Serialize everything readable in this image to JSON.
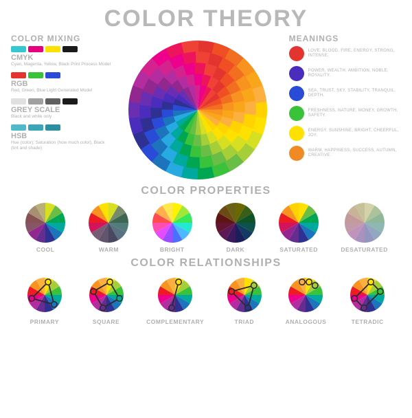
{
  "title": "COLOR THEORY",
  "mixing": {
    "heading": "COLOR MIXING",
    "models": [
      {
        "name": "CMYK",
        "desc": "Cyan, Magenta, Yellow, Black\nPrint Process Model",
        "swatches": [
          "#36c7d1",
          "#e6007e",
          "#ffe100",
          "#1a1a1a"
        ]
      },
      {
        "name": "RGB",
        "desc": "Red, Green, Blue\nLight Generated Model",
        "swatches": [
          "#e3342f",
          "#3ac23a",
          "#2a4bd8"
        ]
      },
      {
        "name": "GREY SCALE",
        "desc": "Black and white only",
        "swatches": [
          "#e0e0e0",
          "#a0a0a0",
          "#606060",
          "#1a1a1a"
        ]
      },
      {
        "name": "HSB",
        "desc": "Hue (color), Saturation (how much\ncolor), Black (tint and shade)",
        "swatches": [
          "#4fb8c9",
          "#39a5b7",
          "#2a8fa1"
        ]
      }
    ]
  },
  "meanings": {
    "heading": "MEANINGS",
    "items": [
      {
        "color": "#e3342f",
        "text": "LOVE, BLOOD, FIRE, ENERGY,\nSTRONG, INTENSE."
      },
      {
        "color": "#4a2dbd",
        "text": "POWER, WEALTH, AMBITION,\nNOBLE, ROYALITY."
      },
      {
        "color": "#2a4bd8",
        "text": "SEA, TRUST, SKY, STABILITY,\nTRANQUIL, DEPTH."
      },
      {
        "color": "#3ac23a",
        "text": "FRESHNESS, NATURE, MONEY,\nGROWTH, SAFETY."
      },
      {
        "color": "#ffe100",
        "text": "ENERGY, SUNSHINE, BRIGHT,\nCHEERFUL, JOY."
      },
      {
        "color": "#f08a24",
        "text": "WARM, HAPPINESS, SUCCESS,\nAUTUMN, CREATIVE."
      }
    ]
  },
  "main_wheel": {
    "size": 210,
    "colors": [
      "#e3342f",
      "#f04e23",
      "#f26f21",
      "#f7931e",
      "#faa61a",
      "#fbb040",
      "#ffd200",
      "#ffe100",
      "#d7df23",
      "#a6ce39",
      "#6abd45",
      "#3ac23a",
      "#00a651",
      "#00a99d",
      "#27aae1",
      "#1c75bc",
      "#2a4bd8",
      "#2e3192",
      "#4a2dbd",
      "#6a2eb3",
      "#92278f",
      "#b32da0",
      "#d4228f",
      "#ec008c",
      "#ed145b",
      "#ef4136"
    ]
  },
  "properties": {
    "heading": "COLOR PROPERTIES",
    "wheel_size": 62,
    "wheels": [
      {
        "label": "COOL",
        "colors": [
          "#d7df23",
          "#6abd45",
          "#00a651",
          "#00a99d",
          "#1c75bc",
          "#2e3192",
          "#662d91",
          "#92278f",
          "#d4145a",
          "#ed1c24",
          "#f7931e",
          "#ffe100"
        ],
        "mode": "cool"
      },
      {
        "label": "WARM",
        "colors": [
          "#d7df23",
          "#6abd45",
          "#00a651",
          "#00a99d",
          "#1c75bc",
          "#2e3192",
          "#662d91",
          "#92278f",
          "#d4145a",
          "#ed1c24",
          "#f7931e",
          "#ffe100"
        ],
        "mode": "warm"
      },
      {
        "label": "BRIGHT",
        "colors": [
          "#fff200",
          "#a0e838",
          "#36e85a",
          "#24e8d0",
          "#4db8ff",
          "#4d6fff",
          "#9c4dff",
          "#e34dff",
          "#ff4db0",
          "#ff4d4d",
          "#ffb04d",
          "#ffe74d"
        ]
      },
      {
        "label": "DARK",
        "colors": [
          "#6b6800",
          "#385e18",
          "#0f5225",
          "#0f524c",
          "#133a63",
          "#1a1f5c",
          "#3a1a5c",
          "#5c1a54",
          "#63142f",
          "#5e1414",
          "#6b4a14",
          "#6b6114"
        ]
      },
      {
        "label": "SATURATED",
        "colors": [
          "#ffe100",
          "#6abd45",
          "#00a651",
          "#00a99d",
          "#1c75bc",
          "#2e3192",
          "#662d91",
          "#92278f",
          "#d4145a",
          "#ed1c24",
          "#f7931e",
          "#ffd200"
        ]
      },
      {
        "label": "DESATURATED",
        "colors": [
          "#d4d2a8",
          "#abc29a",
          "#8fb89a",
          "#8fb8b2",
          "#93a8bf",
          "#9396bf",
          "#a893bf",
          "#bf93bb",
          "#c29aa8",
          "#c29a9a",
          "#c7b29a",
          "#c7c19a"
        ]
      }
    ]
  },
  "relationships": {
    "heading": "COLOR RELATIONSHIPS",
    "wheel_size": 62,
    "base_colors": [
      "#ffe100",
      "#a6ce39",
      "#3ac23a",
      "#00a99d",
      "#1c75bc",
      "#2e3192",
      "#662d91",
      "#b32da0",
      "#ec008c",
      "#ed1c24",
      "#f7931e",
      "#fbb040"
    ],
    "wheels": [
      {
        "label": "PRIMARY",
        "highlights": [
          0,
          4,
          8
        ],
        "lines": [
          [
            0,
            4
          ],
          [
            4,
            8
          ],
          [
            8,
            0
          ]
        ]
      },
      {
        "label": "SQUARE",
        "highlights": [
          0,
          3,
          6,
          9
        ],
        "lines": [
          [
            0,
            3
          ],
          [
            3,
            6
          ],
          [
            6,
            9
          ],
          [
            9,
            0
          ]
        ]
      },
      {
        "label": "COMPLEMENTARY",
        "highlights": [
          0,
          6
        ],
        "lines": [
          [
            0,
            6
          ]
        ]
      },
      {
        "label": "TRIAD",
        "highlights": [
          1,
          5,
          9
        ],
        "lines": [
          [
            1,
            5
          ],
          [
            5,
            9
          ],
          [
            9,
            1
          ]
        ]
      },
      {
        "label": "ANALOGOUS",
        "highlights": [
          11,
          0,
          1
        ],
        "lines": [
          [
            11,
            0
          ],
          [
            0,
            1
          ]
        ]
      },
      {
        "label": "TETRADIC",
        "highlights": [
          0,
          2,
          6,
          8
        ],
        "lines": [
          [
            0,
            2
          ],
          [
            2,
            6
          ],
          [
            6,
            8
          ],
          [
            8,
            0
          ]
        ]
      }
    ]
  }
}
